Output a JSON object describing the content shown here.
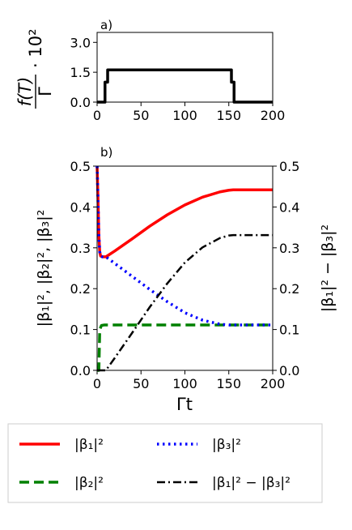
{
  "chart_data": [
    {
      "type": "line",
      "panel_label": "a)",
      "ylabel_fraction_num": "f(T)",
      "ylabel_fraction_den": "Γ",
      "ylabel_factor": "· 10²",
      "xlim": [
        0,
        200
      ],
      "ylim": [
        0,
        3.5
      ],
      "xticks": [
        "0",
        "50",
        "100",
        "150",
        "200"
      ],
      "yticks": [
        "0.0",
        "1.5",
        "3.0"
      ],
      "series": [
        {
          "color": "#000000",
          "style": "solid",
          "x": [
            0,
            9,
            9,
            12,
            12,
            153,
            153,
            156,
            156,
            200
          ],
          "y": [
            0,
            0,
            1.0,
            1.0,
            1.62,
            1.62,
            1.0,
            1.0,
            0,
            0
          ]
        }
      ]
    },
    {
      "type": "line",
      "panel_label": "b)",
      "ylabel_left": "|β₁|², |β₂|², |β₃|²",
      "ylabel_right": "|β₁|² − |β₃|²",
      "xlabel": "Γt",
      "xlim": [
        0,
        200
      ],
      "ylim": [
        0,
        0.5
      ],
      "xticks": [
        "0",
        "50",
        "100",
        "150",
        "200"
      ],
      "yticks": [
        "0.0",
        "0.1",
        "0.2",
        "0.3",
        "0.4",
        "0.5"
      ],
      "series": [
        {
          "name": "|β₁|²",
          "color": "#ff0000",
          "style": "solid",
          "x": [
            0,
            1,
            2,
            3,
            4,
            6,
            10,
            20,
            40,
            60,
            80,
            100,
            120,
            140,
            150,
            155,
            160,
            200
          ],
          "y": [
            0.5,
            0.42,
            0.33,
            0.29,
            0.28,
            0.278,
            0.278,
            0.292,
            0.322,
            0.353,
            0.381,
            0.405,
            0.424,
            0.437,
            0.441,
            0.442,
            0.442,
            0.442
          ]
        },
        {
          "name": "|β₂|²",
          "color": "#008000",
          "style": "dashed",
          "x": [
            0,
            2,
            3,
            5,
            8,
            200
          ],
          "y": [
            0,
            0,
            0.1,
            0.11,
            0.111,
            0.111
          ]
        },
        {
          "name": "|β₃|²",
          "color": "#0000ff",
          "style": "dotted",
          "x": [
            0,
            1,
            2,
            3,
            4,
            6,
            10,
            20,
            40,
            60,
            80,
            100,
            120,
            140,
            150,
            155,
            160,
            200
          ],
          "y": [
            0.5,
            0.42,
            0.33,
            0.29,
            0.28,
            0.278,
            0.278,
            0.262,
            0.23,
            0.198,
            0.168,
            0.141,
            0.123,
            0.113,
            0.111,
            0.111,
            0.111,
            0.111
          ]
        },
        {
          "name": "|β₁|² − |β₃|²",
          "color": "#000000",
          "style": "dashdot",
          "x": [
            0,
            10,
            20,
            40,
            60,
            80,
            100,
            120,
            140,
            150,
            155,
            160,
            200
          ],
          "y": [
            0,
            0,
            0.03,
            0.092,
            0.155,
            0.213,
            0.264,
            0.301,
            0.324,
            0.33,
            0.331,
            0.331,
            0.331
          ]
        }
      ]
    }
  ]
}
